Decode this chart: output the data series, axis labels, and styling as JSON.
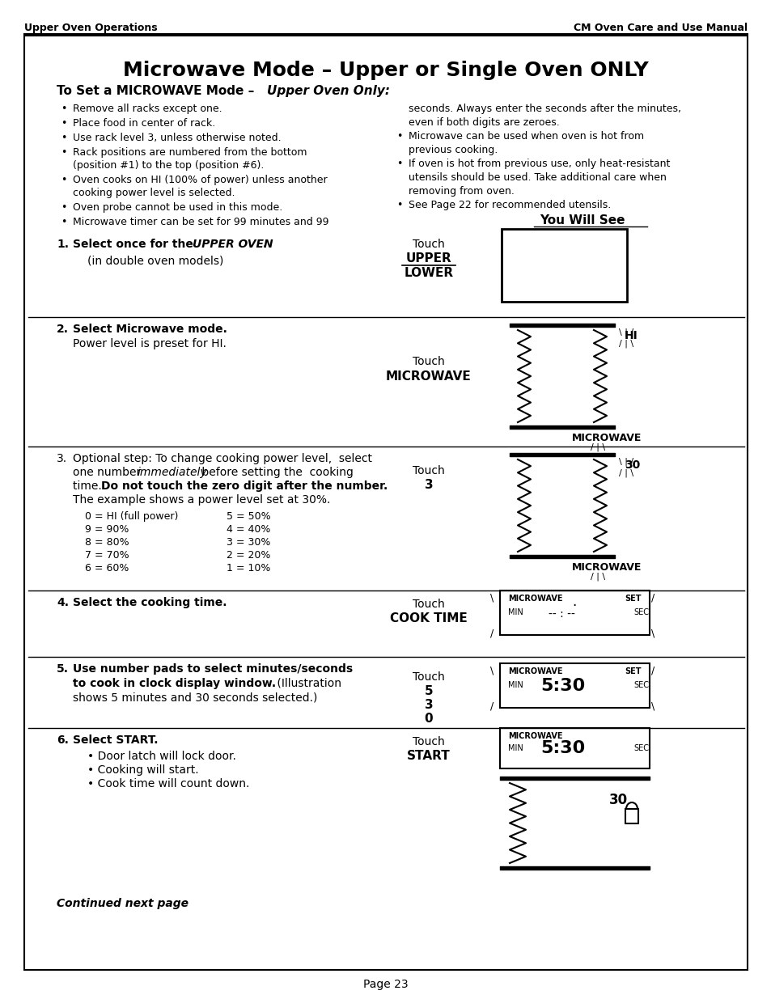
{
  "header_left": "Upper Oven Operations",
  "header_right": "CM Oven Care and Use Manual",
  "title": "Microwave Mode – Upper or Single Oven ONLY",
  "subtitle": "To Set a MICROWAVE Mode – Upper Oven Only:",
  "bullets_left": [
    "Remove all racks except one.",
    "Place food in center of rack.",
    "Use rack level 3, unless otherwise noted.",
    "Rack positions are numbered from the bottom\n(position #1) to the top (position #6).",
    "Oven cooks on HI (100% of power) unless another\ncooking power level is selected.",
    "Oven probe cannot be used in this mode.",
    "Microwave timer can be set for 99 minutes and 99"
  ],
  "bullets_right": [
    "seconds. Always enter the seconds after the minutes,\neven if both digits are zeroes.",
    "Microwave can be used when oven is hot from\nprevious cooking.",
    "If oven is hot from previous use, only heat-resistant\nutensils should be used. Take additional care when\nremoving from oven.",
    "See Page 22 for recommended utensils."
  ],
  "footer": "Page 23",
  "bg_color": "#ffffff",
  "border_color": "#000000",
  "text_color": "#000000"
}
